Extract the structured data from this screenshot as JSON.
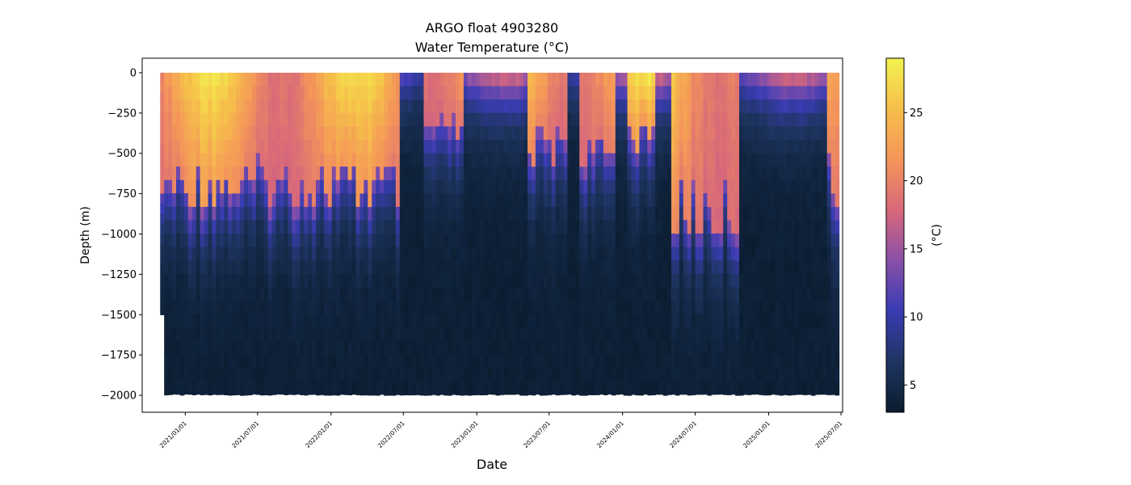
{
  "chart_data": {
    "type": "heatmap",
    "title": "ARGO float 4903280",
    "subtitle": "Water Temperature (°C)",
    "xlabel": "Date",
    "ylabel": "Depth (m)",
    "colorbar_label": "(°C)",
    "x_ticks": [
      "2021/01/01",
      "2021/07/01",
      "2022/01/01",
      "2022/07/01",
      "2023/01/01",
      "2023/07/01",
      "2024/01/01",
      "2024/07/01",
      "2025/01/01",
      "2025/07/01"
    ],
    "y_ticks": [
      0,
      -250,
      -500,
      -750,
      -1000,
      -1250,
      -1500,
      -1750,
      -2000
    ],
    "xlim": [
      "2020-09-15",
      "2025-07-05"
    ],
    "ylim": [
      -2105,
      90
    ],
    "colorbar_ticks": [
      5,
      10,
      15,
      20,
      25
    ],
    "colorbar_range": [
      3,
      29
    ],
    "colormap": [
      "#0a1c2e",
      "#1e3460",
      "#3a3cb4",
      "#8a50a8",
      "#d8687a",
      "#f4945a",
      "#f6c04a",
      "#f2f24e"
    ],
    "first_profile_date": "2020-10-30",
    "last_profile_date": "2025-06-20",
    "max_depth_m": -2000,
    "first_profile_max_depth_m": -1500,
    "surface_temperature_peak_c": 28,
    "deep_temperature_c": 3.5,
    "warm_periods": [
      {
        "start": "2020-10-30",
        "end": "2022-06-20",
        "mixed_layer_depth_m": -700
      },
      {
        "start": "2022-08-15",
        "end": "2022-11-20",
        "mixed_layer_depth_m": -350
      },
      {
        "start": "2023-05-01",
        "end": "2023-08-15",
        "mixed_layer_depth_m": -450
      },
      {
        "start": "2023-09-10",
        "end": "2023-12-10",
        "mixed_layer_depth_m": -500
      },
      {
        "start": "2024-01-10",
        "end": "2024-03-20",
        "mixed_layer_depth_m": -400
      },
      {
        "start": "2024-05-01",
        "end": "2024-10-15",
        "mixed_layer_depth_m": -850
      },
      {
        "start": "2025-05-20",
        "end": "2025-06-20",
        "mixed_layer_depth_m": -700
      }
    ]
  }
}
